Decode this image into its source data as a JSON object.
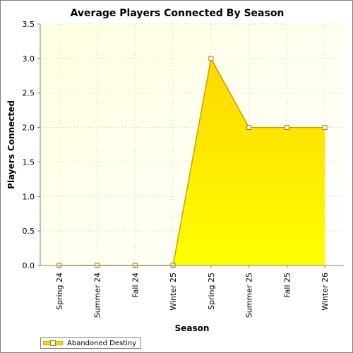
{
  "chart_data": {
    "type": "area",
    "title": "Average Players Connected By Season",
    "xlabel": "Season",
    "ylabel": "Players Connected",
    "categories": [
      "Spring 24",
      "Summer 24",
      "Fall 24",
      "Winter 25",
      "Spring 25",
      "Summer 25",
      "Fall 25",
      "Winter 26"
    ],
    "series": [
      {
        "name": "Abandoned Destiny",
        "values": [
          0,
          0,
          0,
          0,
          3.0,
          2.0,
          2.0,
          2.0
        ],
        "color": "#ffd700"
      }
    ],
    "ylim": [
      0,
      3.5
    ],
    "yticks": [
      "0.0",
      "0.5",
      "1.0",
      "1.5",
      "2.0",
      "2.5",
      "3.0",
      "3.5"
    ],
    "grid": true,
    "legend_position": "bottom-left",
    "plot_background": "#fffff0"
  }
}
